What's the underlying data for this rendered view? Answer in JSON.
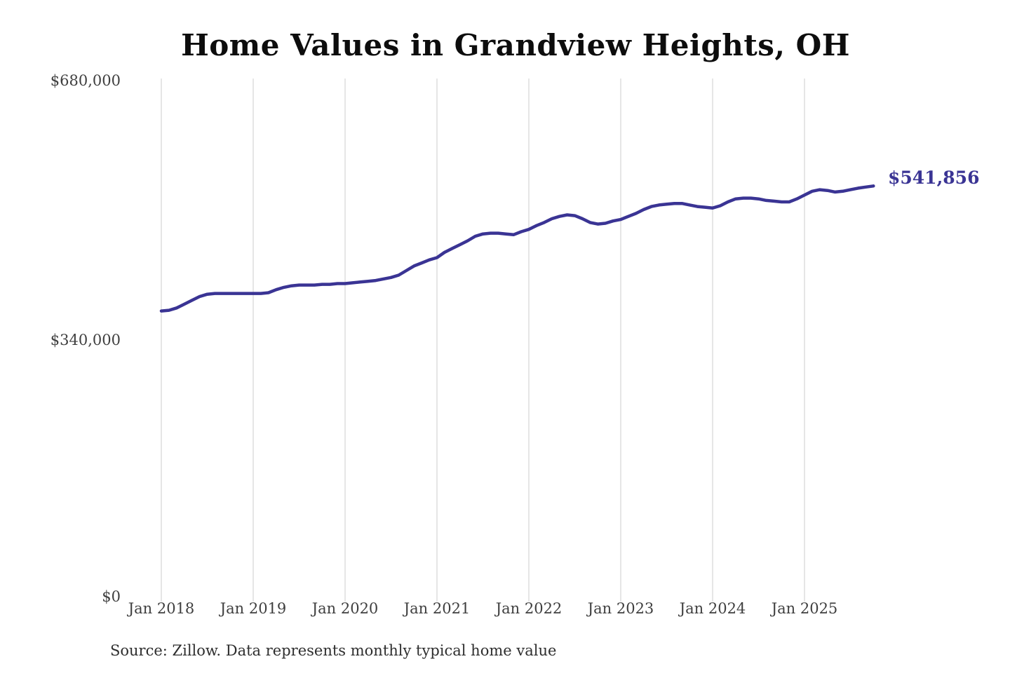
{
  "title": "Home Values in Grandview Heights, OH",
  "annotation": "$541,856",
  "source_note": "Source: Zillow. Data represents monthly typical home value",
  "y_axis": {
    "labels": [
      "$680,000",
      "$340,000",
      "$0"
    ]
  },
  "x_axis": {
    "labels": [
      "Jan 2018",
      "Jan 2019",
      "Jan 2020",
      "Jan 2021",
      "Jan 2022",
      "Jan 2023",
      "Jan 2024",
      "Jan 2025"
    ]
  },
  "colors": {
    "line": "#3a3494",
    "annotation": "#3a3494",
    "gridline": "#cccccc"
  },
  "chart_data": {
    "type": "line",
    "title": "Home Values in Grandview Heights, OH",
    "xlabel": "",
    "ylabel": "",
    "ylim": [
      0,
      680000
    ],
    "y_ticks": [
      0,
      340000,
      680000
    ],
    "y_tick_labels": [
      "$0",
      "$340,000",
      "$680,000"
    ],
    "x_tick_labels": [
      "Jan 2018",
      "Jan 2019",
      "Jan 2020",
      "Jan 2021",
      "Jan 2022",
      "Jan 2023",
      "Jan 2024",
      "Jan 2025"
    ],
    "grid": "vertical yearly gridlines only",
    "legend": "none",
    "frequency": "monthly",
    "x_range": [
      "2018-01",
      "2025-10"
    ],
    "final_value": 541856,
    "final_value_label": "$541,856",
    "series": [
      {
        "name": "Monthly typical home value (USD)",
        "values": [
          378000,
          379000,
          382000,
          387000,
          392000,
          397000,
          400000,
          401000,
          401000,
          401000,
          401000,
          401000,
          401000,
          401000,
          402000,
          406000,
          409000,
          411000,
          412000,
          412000,
          412000,
          413000,
          413000,
          414000,
          414000,
          415000,
          416000,
          417000,
          418000,
          420000,
          422000,
          425000,
          431000,
          437000,
          441000,
          445000,
          448000,
          455000,
          460000,
          465000,
          470000,
          476000,
          479000,
          480000,
          480000,
          479000,
          478000,
          482000,
          485000,
          490000,
          494000,
          499000,
          502000,
          504000,
          503000,
          499000,
          494000,
          492000,
          493000,
          496000,
          498000,
          502000,
          506000,
          511000,
          515000,
          517000,
          518000,
          519000,
          519000,
          517000,
          515000,
          514000,
          513000,
          516000,
          521000,
          525000,
          526000,
          526000,
          525000,
          523000,
          522000,
          521000,
          521000,
          525000,
          530000,
          535000,
          537000,
          536000,
          534000,
          535000,
          537000,
          539000,
          540500,
          541856
        ]
      }
    ]
  }
}
